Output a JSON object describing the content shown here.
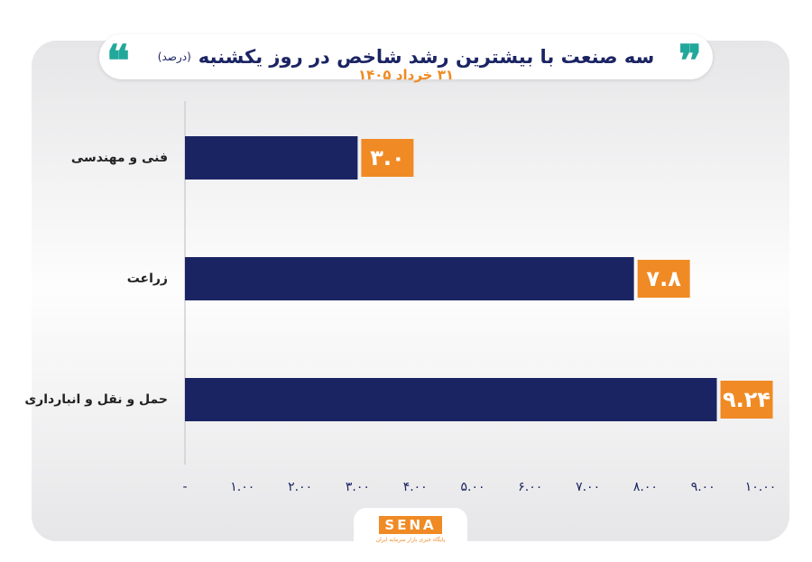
{
  "chart_data": {
    "type": "hbar",
    "title": "سه صنعت با بیشترین رشد شاخص در روز یکشنبه",
    "unit": "(درصد)",
    "subtitle": "۳۱ خرداد ۱۴۰۵",
    "categories": [
      "فنی و مهندسی",
      "زراعت",
      "حمل و نقل و انبارداری"
    ],
    "values": [
      3.0,
      7.8,
      9.24
    ],
    "value_labels": [
      "۳.۰",
      "۷.۸",
      "۹.۲۴"
    ],
    "color": "#1b2463",
    "label_color": "#f08a24",
    "xlim": [
      0,
      10
    ],
    "xticks": [
      {
        "value": 0,
        "label": "-"
      },
      {
        "value": 1,
        "label": "۱.۰۰"
      },
      {
        "value": 2,
        "label": "۲.۰۰"
      },
      {
        "value": 3,
        "label": "۳.۰۰"
      },
      {
        "value": 4,
        "label": "۴.۰۰"
      },
      {
        "value": 5,
        "label": "۵.۰۰"
      },
      {
        "value": 6,
        "label": "۶.۰۰"
      },
      {
        "value": 7,
        "label": "۷.۰۰"
      },
      {
        "value": 8,
        "label": "۸.۰۰"
      },
      {
        "value": 9,
        "label": "۹.۰۰"
      },
      {
        "value": 10,
        "label": "۱۰.۰۰"
      }
    ]
  },
  "logo": {
    "name": "SENA",
    "tagline": "پایگاه خبری بازار سرمایه ایران"
  }
}
